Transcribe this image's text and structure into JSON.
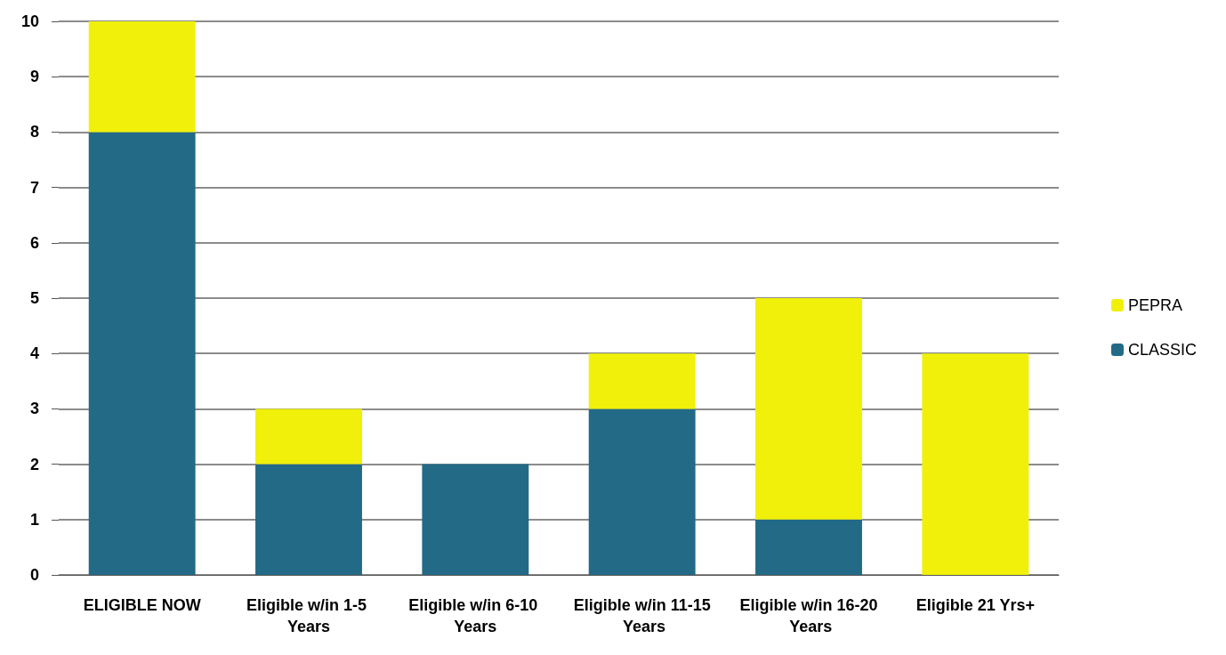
{
  "chart_data": {
    "type": "bar",
    "stacked": true,
    "categories": [
      "ELIGIBLE NOW",
      "Eligible w/in 1-5 Years",
      "Eligible w/in 6-10 Years",
      "Eligible w/in 11-15 Years",
      "Eligible w/in 16-20 Years",
      "Eligible 21 Yrs+"
    ],
    "series": [
      {
        "name": "CLASSIC",
        "color": "#236a86",
        "values": [
          8,
          2,
          2,
          3,
          1,
          0
        ]
      },
      {
        "name": "PEPRA",
        "color": "#f0f00a",
        "values": [
          2,
          1,
          0,
          1,
          4,
          4
        ]
      }
    ],
    "ylim": [
      0,
      10
    ],
    "yticks": [
      0,
      1,
      2,
      3,
      4,
      5,
      6,
      7,
      8,
      9,
      10
    ],
    "grid": "y",
    "legend": "right"
  }
}
